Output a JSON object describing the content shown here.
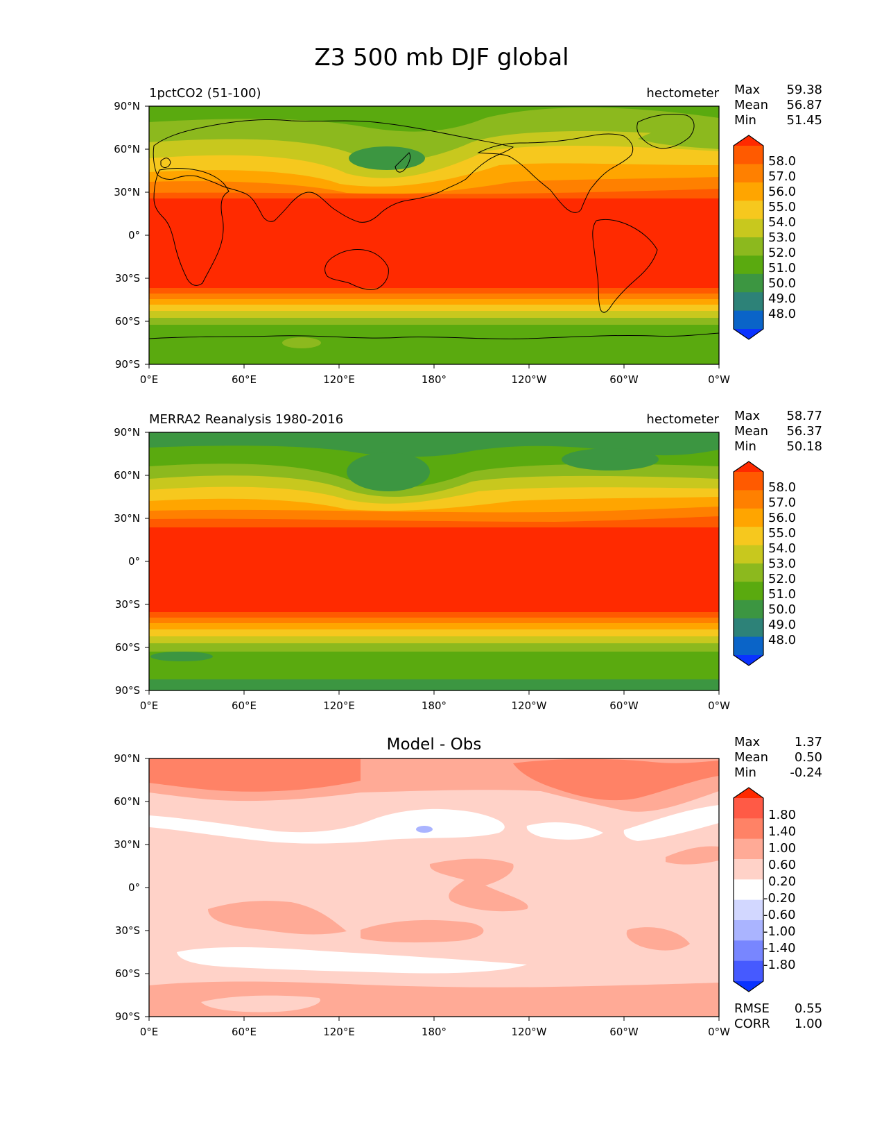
{
  "figure_title": "Z3 500 mb DJF global",
  "chart_data": [
    {
      "type": "heatmap",
      "panel": "test",
      "title_left": "1pctCO2 (51-100)",
      "title_right": "hectometer",
      "stats": [
        {
          "label": "Max",
          "value": "59.38"
        },
        {
          "label": "Mean",
          "value": "56.87"
        },
        {
          "label": "Min",
          "value": "51.45"
        }
      ],
      "colorbar_labels": [
        "58.0",
        "57.0",
        "56.0",
        "55.0",
        "54.0",
        "53.0",
        "52.0",
        "51.0",
        "50.0",
        "49.0",
        "48.0"
      ],
      "colorbar_colors": [
        "#ff2a00",
        "#ff5a00",
        "#ff8000",
        "#ffa500",
        "#f6c81e",
        "#c8c81e",
        "#8cb91e",
        "#5aaa0f",
        "#3c9641",
        "#2d8278",
        "#0a64c8",
        "#0a32ff"
      ],
      "xticks": [
        "0°E",
        "60°E",
        "120°E",
        "180°",
        "120°W",
        "60°W",
        "0°W"
      ],
      "yticks": [
        "90°N",
        "60°N",
        "30°N",
        "0°",
        "30°S",
        "60°S",
        "90°S"
      ],
      "xlim": [
        0,
        360
      ],
      "ylim": [
        -90,
        90
      ]
    },
    {
      "type": "heatmap",
      "panel": "reference",
      "title_left": "MERRA2 Reanalysis 1980-2016",
      "title_right": "hectometer",
      "stats": [
        {
          "label": "Max",
          "value": "58.77"
        },
        {
          "label": "Mean",
          "value": "56.37"
        },
        {
          "label": "Min",
          "value": "50.18"
        }
      ],
      "colorbar_labels": [
        "58.0",
        "57.0",
        "56.0",
        "55.0",
        "54.0",
        "53.0",
        "52.0",
        "51.0",
        "50.0",
        "49.0",
        "48.0"
      ],
      "colorbar_colors": [
        "#ff2a00",
        "#ff5a00",
        "#ff8000",
        "#ffa500",
        "#f6c81e",
        "#c8c81e",
        "#8cb91e",
        "#5aaa0f",
        "#3c9641",
        "#2d8278",
        "#0a64c8",
        "#0a32ff"
      ],
      "xticks": [
        "0°E",
        "60°E",
        "120°E",
        "180°",
        "120°W",
        "60°W",
        "0°W"
      ],
      "yticks": [
        "90°N",
        "60°N",
        "30°N",
        "0°",
        "30°S",
        "60°S",
        "90°S"
      ],
      "xlim": [
        0,
        360
      ],
      "ylim": [
        -90,
        90
      ]
    },
    {
      "type": "heatmap",
      "panel": "difference",
      "title_center": "Model - Obs",
      "stats": [
        {
          "label": "Max",
          "value": "1.37"
        },
        {
          "label": "Mean",
          "value": "0.50"
        },
        {
          "label": "Min",
          "value": "-0.24"
        }
      ],
      "extra_stats": [
        {
          "label": "RMSE",
          "value": "0.55"
        },
        {
          "label": "CORR",
          "value": "1.00"
        }
      ],
      "colorbar_labels": [
        "1.80",
        "1.40",
        "1.00",
        "0.60",
        "0.20",
        "-0.20",
        "-0.60",
        "-1.00",
        "-1.40",
        "-1.80"
      ],
      "colorbar_colors": [
        "#ff2a00",
        "#ff5a46",
        "#ff8266",
        "#ffaa96",
        "#ffd2c8",
        "#ffffff",
        "#d2d7ff",
        "#aab4ff",
        "#7886ff",
        "#465aff",
        "#0a32ff"
      ],
      "xticks": [
        "0°E",
        "60°E",
        "120°E",
        "180°",
        "120°W",
        "60°W",
        "0°W"
      ],
      "yticks": [
        "90°N",
        "60°N",
        "30°N",
        "0°",
        "30°S",
        "60°S",
        "90°S"
      ],
      "xlim": [
        0,
        360
      ],
      "ylim": [
        -90,
        90
      ]
    }
  ]
}
